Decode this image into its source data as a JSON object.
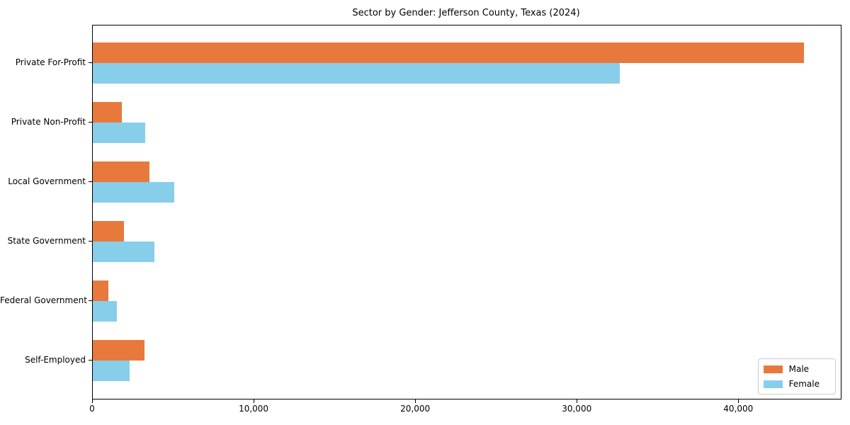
{
  "chart_data": {
    "type": "bar",
    "orientation": "horizontal",
    "title": "Sector by Gender: Jefferson County, Texas (2024)",
    "categories": [
      "Private For-Profit",
      "Private Non-Profit",
      "Local Government",
      "State Government",
      "Federal Government",
      "Self-Employed"
    ],
    "series": [
      {
        "name": "Male",
        "color": "#E8793C",
        "values": [
          44000,
          1800,
          3500,
          1950,
          980,
          3200
        ]
      },
      {
        "name": "Female",
        "color": "#87CEEB",
        "values": [
          32600,
          3250,
          5050,
          3800,
          1490,
          2290
        ]
      }
    ],
    "xlabel": "",
    "ylabel": "",
    "xlim": [
      0,
      46300
    ],
    "xticks": [
      0,
      10000,
      20000,
      30000,
      40000
    ],
    "xtick_labels": [
      "0",
      "10,000",
      "20,000",
      "30,000",
      "40,000"
    ],
    "legend": {
      "position": "lower right",
      "labels": [
        "Male",
        "Female"
      ]
    },
    "grid": false,
    "axis_color": "#000000",
    "text_color": "#000000",
    "background_color": "#ffffff"
  }
}
